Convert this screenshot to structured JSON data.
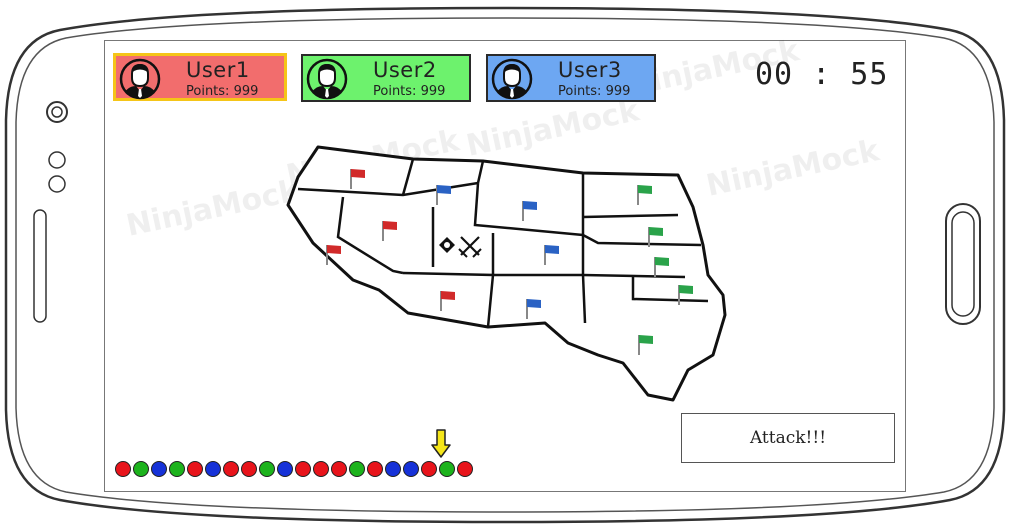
{
  "users": [
    {
      "name": "User1",
      "points_label": "Points: 999",
      "color": "#f26d6d",
      "border": "#f5c518"
    },
    {
      "name": "User2",
      "points_label": "Points: 999",
      "color": "#6df26d",
      "border": "#2a2a2a"
    },
    {
      "name": "User3",
      "points_label": "Points: 999",
      "color": "#6da7f2",
      "border": "#2a2a2a"
    }
  ],
  "timer": "00 : 55",
  "attack_button": "Attack!!!",
  "turn_order": [
    "red",
    "green",
    "blue",
    "green",
    "red",
    "blue",
    "red",
    "red",
    "green",
    "blue",
    "red",
    "red",
    "red",
    "green",
    "red",
    "blue",
    "blue",
    "red",
    "green",
    "red"
  ],
  "current_turn_index": 17,
  "map": {
    "territory_flags": [
      "red",
      "blue",
      "blue",
      "green",
      "red",
      "green",
      "red",
      "blue",
      "green",
      "red",
      "blue",
      "green",
      "green"
    ],
    "battle_icon": "crossed-swords-icon"
  },
  "watermark": "NinjaMock",
  "colors": {
    "red": "#e8141b",
    "green": "#1db31d",
    "blue": "#1632d8",
    "flag_red": "#d12a2a",
    "flag_blue": "#2a62c4",
    "flag_green": "#2aa34a"
  }
}
